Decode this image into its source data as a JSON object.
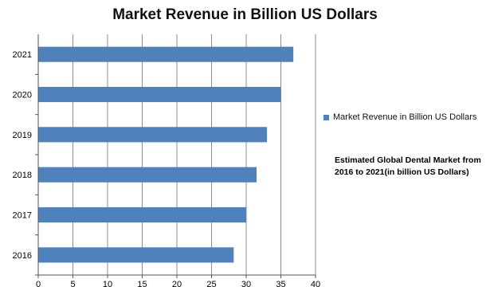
{
  "chart_data": {
    "type": "bar",
    "orientation": "horizontal",
    "title": "Market Revenue in Billion US Dollars",
    "categories": [
      "2016",
      "2017",
      "2018",
      "2019",
      "2020",
      "2021"
    ],
    "series": [
      {
        "name": "Market Revenue in Billion US Dollars",
        "values": [
          28.2,
          30.0,
          31.5,
          33.0,
          35.0,
          36.8
        ]
      }
    ],
    "xlim": [
      0,
      40
    ],
    "xticks": [
      0,
      5,
      10,
      15,
      20,
      25,
      30,
      35,
      40
    ],
    "grid": "vertical",
    "legend_position": "right",
    "annotation": "Estimated Global Dental Market from 2016 to 2021(in billion US Dollars)",
    "bar_color": "#4f81bd",
    "grid_color": "#8c8c8c"
  }
}
